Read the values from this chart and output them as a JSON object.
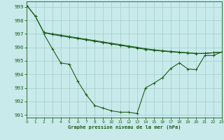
{
  "xlabel": "Graphe pression niveau de la mer (hPa)",
  "bg_color": "#c8eaea",
  "grid_color": "#a0cccc",
  "line_color": "#1a5c1a",
  "xmin": 0,
  "xmax": 23,
  "ymin": 990.8,
  "ymax": 999.4,
  "yticks": [
    991,
    992,
    993,
    994,
    995,
    996,
    997,
    998,
    999
  ],
  "xticks": [
    0,
    1,
    2,
    3,
    4,
    5,
    6,
    7,
    8,
    9,
    10,
    11,
    12,
    13,
    14,
    15,
    16,
    17,
    18,
    19,
    20,
    21,
    22,
    23
  ],
  "line1_x": [
    0,
    1,
    2,
    3,
    4,
    5,
    6,
    7,
    8,
    9,
    10,
    11,
    12,
    13,
    14,
    15,
    16,
    17,
    18,
    19,
    20,
    21,
    22,
    23
  ],
  "line1_y": [
    999.1,
    998.3,
    997.1,
    996.95,
    996.85,
    996.75,
    996.65,
    996.55,
    996.45,
    996.35,
    996.25,
    996.15,
    996.05,
    995.95,
    995.85,
    995.78,
    995.72,
    995.67,
    995.62,
    995.58,
    995.54,
    995.55,
    995.6,
    995.65
  ],
  "line2_x": [
    0,
    1,
    2,
    3,
    4,
    5,
    6,
    7,
    8,
    9,
    10,
    11,
    12,
    13,
    14,
    15,
    16,
    17,
    18,
    19,
    20,
    21,
    22,
    23
  ],
  "line2_y": [
    999.1,
    998.3,
    997.1,
    997.0,
    996.9,
    996.8,
    996.7,
    996.6,
    996.5,
    996.4,
    996.3,
    996.2,
    996.1,
    996.0,
    995.9,
    995.82,
    995.75,
    995.7,
    995.65,
    995.6,
    995.55,
    995.55,
    995.6,
    995.65
  ],
  "line3_x": [
    2,
    3,
    4,
    5,
    6,
    7,
    8,
    9,
    10,
    11,
    12,
    13,
    14,
    15,
    16,
    17,
    18,
    19,
    20,
    21,
    22,
    23
  ],
  "line3_y": [
    997.0,
    995.9,
    994.85,
    994.75,
    993.5,
    992.5,
    991.7,
    991.5,
    991.3,
    991.2,
    991.2,
    991.1,
    993.0,
    993.35,
    993.75,
    994.45,
    994.85,
    994.4,
    994.35,
    995.4,
    995.4,
    995.65
  ]
}
